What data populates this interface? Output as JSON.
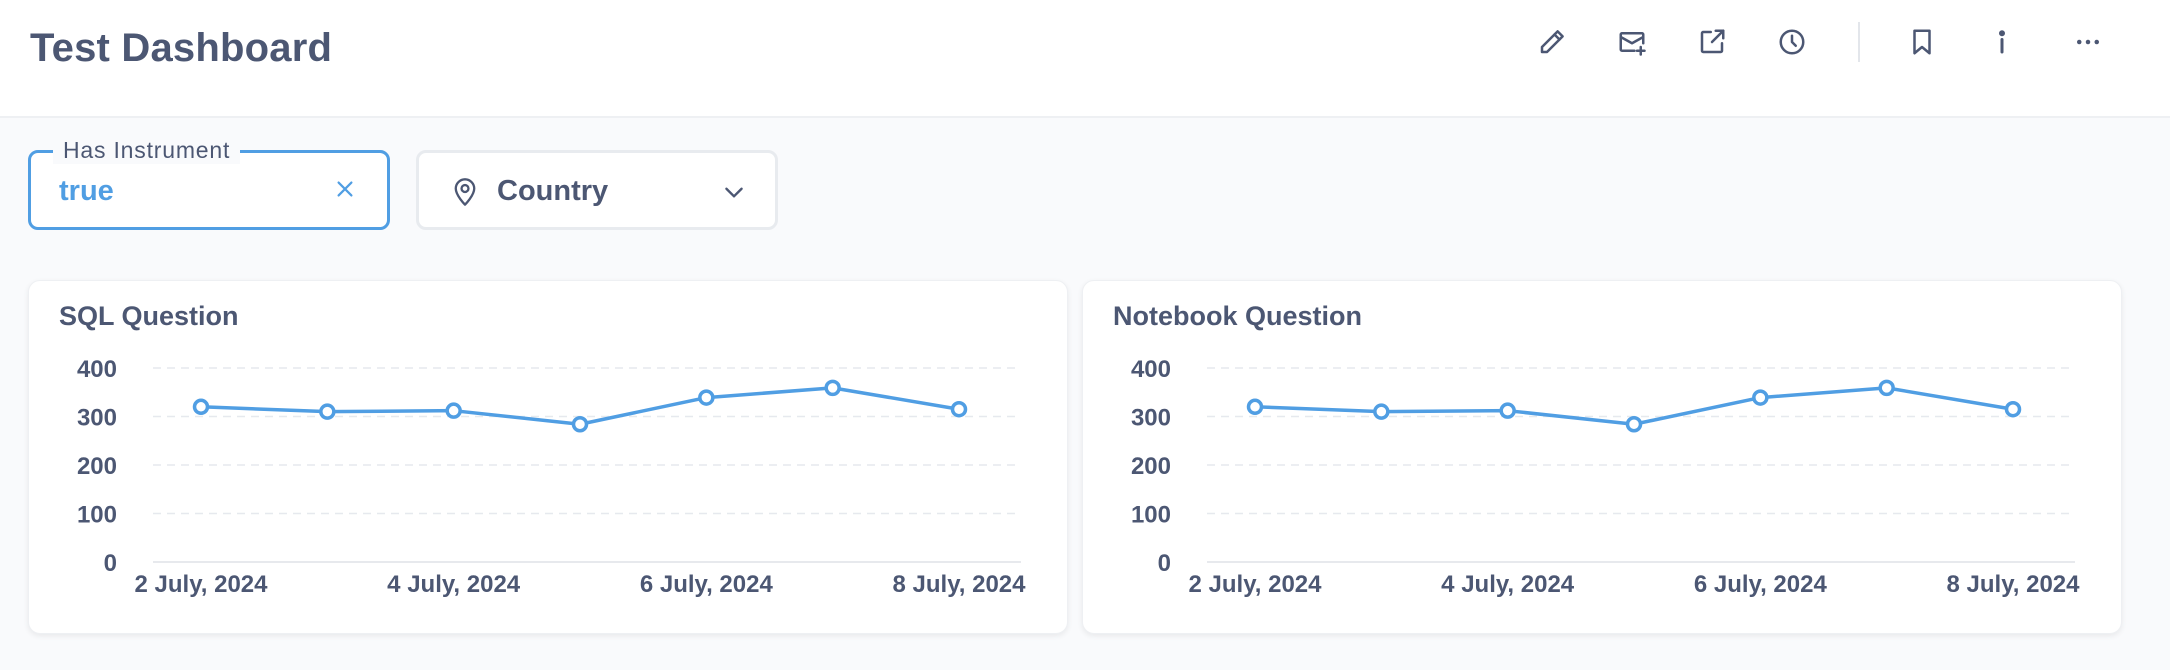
{
  "header": {
    "title": "Test Dashboard",
    "icons": [
      "pencil-icon",
      "subscription-icon",
      "share-icon",
      "history-icon",
      "bookmark-icon",
      "info-icon",
      "more-icon"
    ]
  },
  "filters": {
    "has_instrument": {
      "label": "Has Instrument",
      "value": "true"
    },
    "country": {
      "label": "Country",
      "icon": "location-pin-icon"
    }
  },
  "colors": {
    "accent": "#509ee3",
    "text": "#4c5773",
    "grid": "#e6e9ee"
  },
  "cards": [
    {
      "title": "SQL Question"
    },
    {
      "title": "Notebook Question"
    }
  ],
  "chart_data": [
    {
      "type": "line",
      "title": "SQL Question",
      "x": [
        "2 July, 2024",
        "3 July, 2024",
        "4 July, 2024",
        "5 July, 2024",
        "6 July, 2024",
        "7 July, 2024",
        "8 July, 2024"
      ],
      "x_tick_labels": [
        "2 July, 2024",
        "4 July, 2024",
        "6 July, 2024",
        "8 July, 2024"
      ],
      "series": [
        {
          "values": [
            320,
            310,
            312,
            284,
            339,
            359,
            315
          ]
        }
      ],
      "y_ticks": [
        0,
        100,
        200,
        300,
        400
      ],
      "ylim": [
        0,
        400
      ],
      "grid": true,
      "legend": "none"
    },
    {
      "type": "line",
      "title": "Notebook Question",
      "x": [
        "2 July, 2024",
        "3 July, 2024",
        "4 July, 2024",
        "5 July, 2024",
        "6 July, 2024",
        "7 July, 2024",
        "8 July, 2024"
      ],
      "x_tick_labels": [
        "2 July, 2024",
        "4 July, 2024",
        "6 July, 2024",
        "8 July, 2024"
      ],
      "series": [
        {
          "values": [
            320,
            310,
            312,
            284,
            339,
            359,
            315
          ]
        }
      ],
      "y_ticks": [
        0,
        100,
        200,
        300,
        400
      ],
      "ylim": [
        0,
        400
      ],
      "grid": true,
      "legend": "none"
    }
  ]
}
